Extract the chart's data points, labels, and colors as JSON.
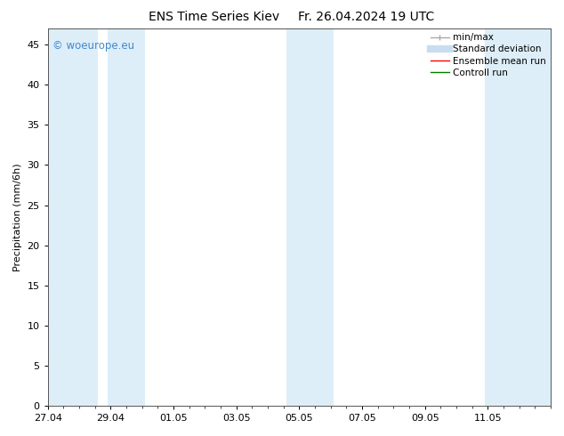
{
  "title_left": "ENS Time Series Kiev",
  "title_right": "Fr. 26.04.2024 19 UTC",
  "ylabel": "Precipitation (mm/6h)",
  "ylim": [
    0,
    47
  ],
  "yticks": [
    0,
    5,
    10,
    15,
    20,
    25,
    30,
    35,
    40,
    45
  ],
  "xlim": [
    0,
    16
  ],
  "xtick_labels": [
    "27.04",
    "29.04",
    "01.05",
    "03.05",
    "05.05",
    "07.05",
    "09.05",
    "11.05"
  ],
  "xtick_positions": [
    0,
    2,
    4,
    6,
    8,
    10,
    12,
    14
  ],
  "shaded_bands": [
    [
      0.0,
      1.6
    ],
    [
      1.9,
      3.1
    ],
    [
      7.6,
      9.1
    ],
    [
      13.9,
      16.0
    ]
  ],
  "shaded_color": "#ddeef8",
  "watermark_text": "© woeurope.eu",
  "watermark_color": "#4488cc",
  "bg_color": "#ffffff",
  "tick_fontsize": 8,
  "label_fontsize": 8,
  "title_fontsize": 10,
  "legend_fontsize": 7.5
}
